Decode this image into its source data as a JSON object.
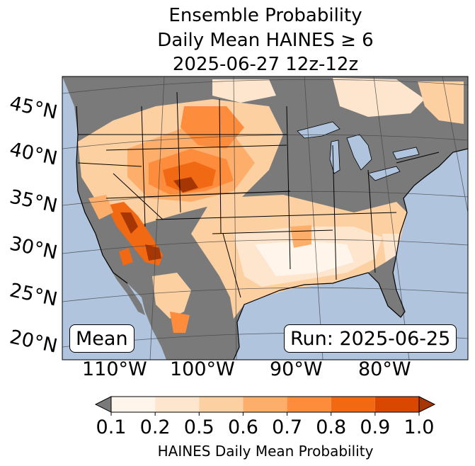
{
  "title": {
    "line1": "Ensemble Probability",
    "line2": "Daily Mean HAINES ≥ 6",
    "line3": "2025-06-27 12z-12z"
  },
  "map": {
    "lat_labels": [
      "45°N",
      "40°N",
      "35°N",
      "30°N",
      "25°N",
      "20°N"
    ],
    "lon_labels": [
      "110°W",
      "100°W",
      "90°W",
      "80°W"
    ],
    "mean_label": "Mean",
    "run_label": "Run: 2025-06-25",
    "colors": {
      "ocean": "#b0c4de",
      "missing": "#7a7a7a",
      "border": "#000000"
    }
  },
  "colorbar": {
    "title": "HAINES Daily Mean Probability",
    "ticks": [
      "0.1",
      "0.2",
      "0.5",
      "0.6",
      "0.7",
      "0.8",
      "0.9",
      "1.0"
    ],
    "colors": [
      "#fff5eb",
      "#fee6ce",
      "#fdd0a2",
      "#fdae6b",
      "#fd8d3c",
      "#f16913",
      "#d94801",
      "#a63603"
    ],
    "under_color": "#7a7a7a"
  }
}
